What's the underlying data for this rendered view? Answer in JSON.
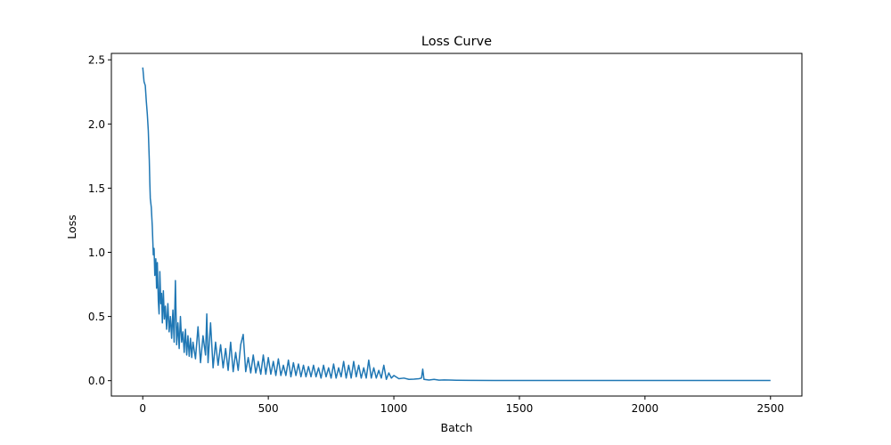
{
  "chart_data": {
    "type": "line",
    "title": "Loss Curve",
    "xlabel": "Batch",
    "ylabel": "Loss",
    "xlim": [
      -125,
      2625
    ],
    "ylim": [
      -0.12,
      2.55
    ],
    "x_ticks": [
      0,
      500,
      1000,
      1500,
      2000,
      2500
    ],
    "y_ticks": [
      0.0,
      0.5,
      1.0,
      1.5,
      2.0,
      2.5
    ],
    "x_tick_labels": [
      "0",
      "500",
      "1000",
      "1500",
      "2000",
      "2500"
    ],
    "y_tick_labels": [
      "0.0",
      "0.5",
      "1.0",
      "1.5",
      "2.0",
      "2.5"
    ],
    "grid": false,
    "series": [
      {
        "color": "#1f77b4",
        "x": [
          0,
          5,
          10,
          14,
          18,
          22,
          26,
          28,
          30,
          34,
          38,
          42,
          45,
          48,
          52,
          55,
          58,
          62,
          65,
          68,
          72,
          75,
          78,
          82,
          86,
          90,
          95,
          100,
          105,
          110,
          115,
          120,
          125,
          130,
          135,
          140,
          145,
          150,
          155,
          160,
          165,
          170,
          175,
          180,
          185,
          190,
          195,
          200,
          210,
          220,
          230,
          240,
          250,
          255,
          260,
          270,
          280,
          290,
          300,
          310,
          320,
          330,
          340,
          350,
          360,
          370,
          380,
          390,
          400,
          410,
          420,
          430,
          440,
          450,
          460,
          470,
          480,
          490,
          500,
          510,
          520,
          530,
          540,
          550,
          560,
          570,
          580,
          590,
          600,
          610,
          620,
          630,
          640,
          650,
          660,
          670,
          680,
          690,
          700,
          710,
          720,
          730,
          740,
          750,
          760,
          770,
          780,
          790,
          800,
          810,
          820,
          830,
          840,
          850,
          860,
          870,
          880,
          890,
          900,
          910,
          920,
          930,
          940,
          950,
          960,
          970,
          980,
          990,
          1000,
          1020,
          1040,
          1060,
          1080,
          1100,
          1110,
          1115,
          1120,
          1140,
          1160,
          1180,
          1200,
          1250,
          1300,
          1400,
          1500,
          1600,
          1700,
          1800,
          1900,
          2000,
          2100,
          2200,
          2300,
          2400,
          2500
        ],
        "y": [
          2.44,
          2.33,
          2.3,
          2.18,
          2.08,
          1.95,
          1.72,
          1.55,
          1.42,
          1.35,
          1.2,
          0.98,
          1.03,
          0.82,
          0.95,
          0.72,
          0.92,
          0.62,
          0.52,
          0.85,
          0.6,
          0.68,
          0.45,
          0.7,
          0.48,
          0.58,
          0.4,
          0.6,
          0.38,
          0.5,
          0.33,
          0.55,
          0.3,
          0.78,
          0.28,
          0.45,
          0.25,
          0.5,
          0.3,
          0.38,
          0.22,
          0.4,
          0.2,
          0.35,
          0.19,
          0.33,
          0.18,
          0.3,
          0.17,
          0.42,
          0.14,
          0.35,
          0.2,
          0.52,
          0.14,
          0.45,
          0.1,
          0.3,
          0.12,
          0.28,
          0.1,
          0.25,
          0.08,
          0.3,
          0.07,
          0.22,
          0.08,
          0.28,
          0.36,
          0.07,
          0.18,
          0.06,
          0.2,
          0.06,
          0.15,
          0.05,
          0.2,
          0.05,
          0.18,
          0.05,
          0.15,
          0.04,
          0.17,
          0.04,
          0.12,
          0.04,
          0.16,
          0.03,
          0.14,
          0.04,
          0.13,
          0.03,
          0.12,
          0.03,
          0.11,
          0.03,
          0.12,
          0.03,
          0.1,
          0.02,
          0.12,
          0.03,
          0.1,
          0.02,
          0.13,
          0.02,
          0.1,
          0.03,
          0.15,
          0.02,
          0.12,
          0.02,
          0.15,
          0.03,
          0.12,
          0.02,
          0.1,
          0.02,
          0.16,
          0.02,
          0.1,
          0.02,
          0.08,
          0.02,
          0.12,
          0.01,
          0.06,
          0.02,
          0.04,
          0.015,
          0.02,
          0.01,
          0.012,
          0.015,
          0.02,
          0.09,
          0.01,
          0.005,
          0.01,
          0.004,
          0.006,
          0.003,
          0.002,
          0.001,
          0.001,
          0.001,
          0.001,
          0.001,
          0.001,
          0.001,
          0.001,
          0.001,
          0.001,
          0.001,
          0.001
        ]
      }
    ]
  }
}
